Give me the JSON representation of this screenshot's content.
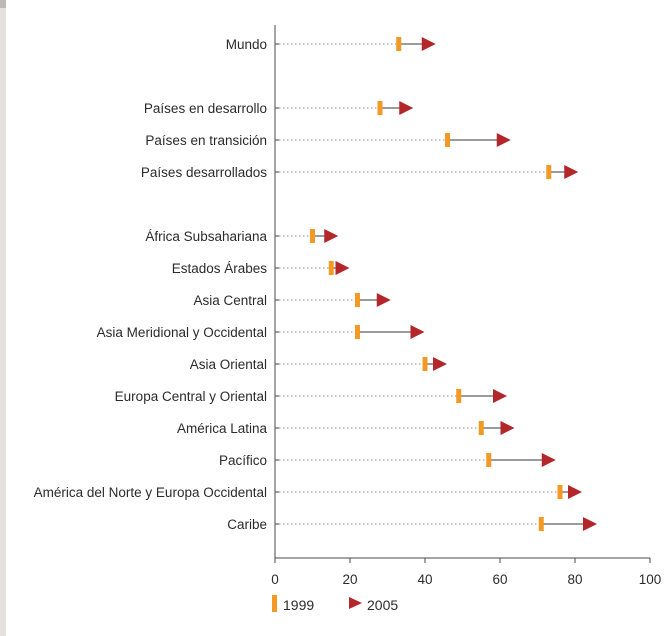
{
  "chart_data": {
    "type": "dot-arrow",
    "categories": [
      "Mundo",
      "Países en desarrollo",
      "Países en transición",
      "Países desarrollados",
      "África Subsahariana",
      "Estados Árabes",
      "Asia Central",
      "Asia Meridional y Occidental",
      "Asia Oriental",
      "Europa Central y Oriental",
      "América Latina",
      "Pacífico",
      "América del Norte y Europa Occidental",
      "Caribe"
    ],
    "series": [
      {
        "name": "1999",
        "marker": "bar",
        "color": "#f39a24",
        "values": [
          33,
          28,
          46,
          73,
          10,
          15,
          22,
          22,
          40,
          49,
          55,
          57,
          76,
          71
        ]
      },
      {
        "name": "2005",
        "marker": "triangle",
        "color": "#b3262a",
        "values": [
          41,
          35,
          61,
          79,
          15,
          18,
          29,
          38,
          44,
          60,
          62,
          73,
          80,
          84
        ]
      }
    ],
    "xlim": [
      0,
      100
    ],
    "xticks": [
      "0",
      "20",
      "40",
      "60",
      "80",
      "100"
    ],
    "grid": false,
    "legend": "bottom"
  },
  "colors": {
    "marker_1999": "#f39a24",
    "marker_2005": "#b3262a",
    "background": "#e3e2e0",
    "top_bar": "#bcbab7"
  }
}
